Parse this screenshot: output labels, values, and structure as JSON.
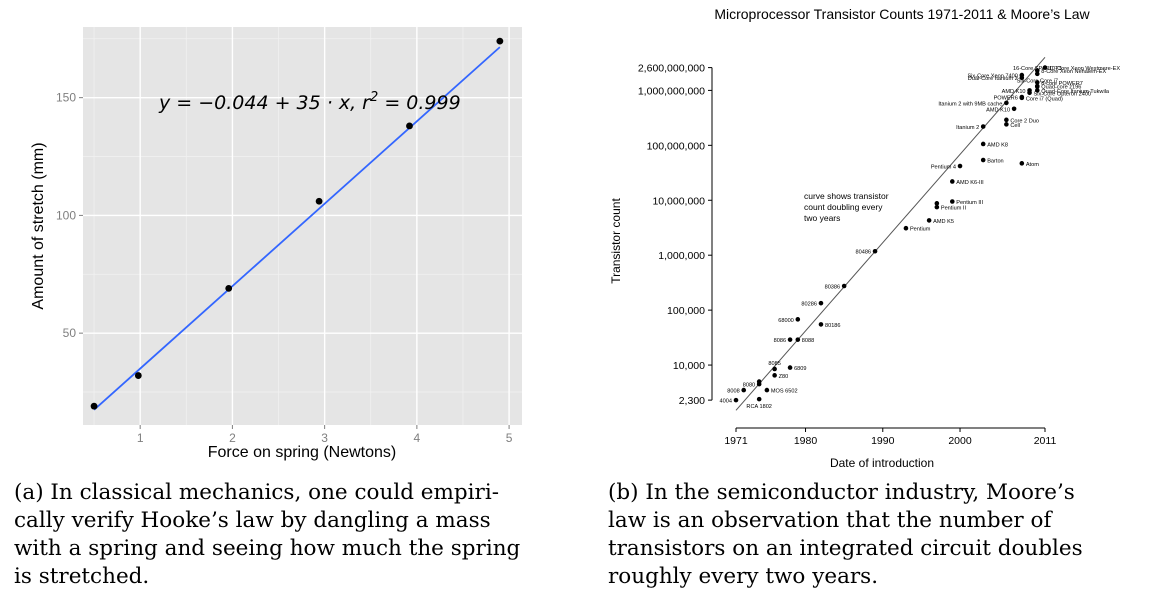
{
  "captions": {
    "a": [
      "(a) In classical mechanics, one could empiri-",
      "cally verify Hooke’s law by dangling a mass",
      "with a spring and seeing how much the spring",
      "is stretched."
    ],
    "b": [
      "(b) In the semiconductor industry, Moore’s",
      "law is an observation that the number of",
      "transistors on an integrated circuit doubles",
      "roughly every two years."
    ]
  },
  "chart_data": [
    {
      "type": "scatter",
      "title": "",
      "xlabel": "Force on spring (Newtons)",
      "ylabel": "Amount of stretch (mm)",
      "xlim": [
        0.38,
        5.14
      ],
      "ylim": [
        11,
        180
      ],
      "xticks": [
        1,
        2,
        3,
        4,
        5
      ],
      "yticks": [
        50,
        100,
        150
      ],
      "grid": true,
      "background": "#e5e5e5",
      "points": [
        {
          "x": 0.5,
          "y": 19
        },
        {
          "x": 0.98,
          "y": 32
        },
        {
          "x": 1.96,
          "y": 69
        },
        {
          "x": 2.94,
          "y": 106
        },
        {
          "x": 3.92,
          "y": 138
        },
        {
          "x": 4.9,
          "y": 174
        }
      ],
      "fit": {
        "intercept": -0.044,
        "slope": 35,
        "color": "#3366ff"
      },
      "annotation": {
        "pre": "y = −0.044 + 35 · x,  r",
        "sup": "2",
        "post": " = 0.999"
      }
    },
    {
      "type": "scatter",
      "title": "Microprocessor Transistor Counts 1971-2011 & Moore’s Law",
      "xlabel": "Date of introduction",
      "ylabel": "Transistor count",
      "yscale": "log",
      "xlim": [
        1971,
        2011
      ],
      "ylim": [
        1000,
        5000000000
      ],
      "xticks": [
        {
          "v": 1971,
          "label": "1971"
        },
        {
          "v": 1980,
          "label": "1980"
        },
        {
          "v": 1990,
          "label": "1990"
        },
        {
          "v": 2000,
          "label": "2000"
        },
        {
          "v": 2011,
          "label": "2011"
        }
      ],
      "yticks": [
        {
          "v": 2300,
          "label": "2,300"
        },
        {
          "v": 10000,
          "label": "10,000"
        },
        {
          "v": 100000,
          "label": "100,000"
        },
        {
          "v": 1000000,
          "label": "1,000,000"
        },
        {
          "v": 10000000,
          "label": "10,000,000"
        },
        {
          "v": 100000000,
          "label": "100,000,000"
        },
        {
          "v": 1000000000,
          "label": "1,000,000,000"
        },
        {
          "v": 2600000000,
          "label": "2,600,000,000"
        }
      ],
      "annotation": [
        "curve shows transistor",
        "count doubling every",
        "two years"
      ],
      "trend": {
        "start": [
          1971,
          1500
        ],
        "end": [
          2011,
          4000000000
        ]
      },
      "points": [
        {
          "x": 1971,
          "y": 2300,
          "label": "4004",
          "side": "left"
        },
        {
          "x": 1972,
          "y": 3500,
          "label": "8008",
          "side": "left"
        },
        {
          "x": 1974,
          "y": 4500,
          "label": "8080",
          "side": "left"
        },
        {
          "x": 1974,
          "y": 5000,
          "label": "",
          "side": "left"
        },
        {
          "x": 1974,
          "y": 2400,
          "label": "RCA 1802",
          "side": "below"
        },
        {
          "x": 1975,
          "y": 3500,
          "label": "MOS 6502",
          "side": "right"
        },
        {
          "x": 1976,
          "y": 8500,
          "label": "8085",
          "side": "above"
        },
        {
          "x": 1976,
          "y": 6500,
          "label": "Z80",
          "side": "right"
        },
        {
          "x": 1978,
          "y": 9000,
          "label": "6809",
          "side": "right"
        },
        {
          "x": 1978,
          "y": 29000,
          "label": "8086",
          "side": "left"
        },
        {
          "x": 1979,
          "y": 29000,
          "label": "8088",
          "side": "right"
        },
        {
          "x": 1979,
          "y": 68000,
          "label": "68000",
          "side": "left"
        },
        {
          "x": 1982,
          "y": 134000,
          "label": "80286",
          "side": "left"
        },
        {
          "x": 1982,
          "y": 55000,
          "label": "80186",
          "side": "right"
        },
        {
          "x": 1985,
          "y": 275000,
          "label": "80386",
          "side": "left"
        },
        {
          "x": 1989,
          "y": 1180000,
          "label": "80486",
          "side": "left"
        },
        {
          "x": 1993,
          "y": 3100000,
          "label": "Pentium",
          "side": "right"
        },
        {
          "x": 1996,
          "y": 4300000,
          "label": "AMD K5",
          "side": "right"
        },
        {
          "x": 1997,
          "y": 7500000,
          "label": "Pentium II",
          "side": "right"
        },
        {
          "x": 1997,
          "y": 8800000,
          "label": "",
          "side": "right"
        },
        {
          "x": 1999,
          "y": 9500000,
          "label": "Pentium III",
          "side": "right"
        },
        {
          "x": 1999,
          "y": 22000000,
          "label": "AMD K6-III",
          "side": "right"
        },
        {
          "x": 2000,
          "y": 42000000,
          "label": "Pentium 4",
          "side": "left"
        },
        {
          "x": 2003,
          "y": 54000000,
          "label": "Barton",
          "side": "right"
        },
        {
          "x": 2003,
          "y": 105900000,
          "label": "AMD K8",
          "side": "right"
        },
        {
          "x": 2003,
          "y": 220000000,
          "label": "Itanium 2",
          "side": "left"
        },
        {
          "x": 2006,
          "y": 291000000,
          "label": "Core 2 Duo",
          "side": "right"
        },
        {
          "x": 2006,
          "y": 241000000,
          "label": "Cell",
          "side": "right"
        },
        {
          "x": 2008,
          "y": 47000000,
          "label": "Atom",
          "side": "right"
        },
        {
          "x": 2007,
          "y": 463000000,
          "label": "AMD K10",
          "side": "left"
        },
        {
          "x": 2006,
          "y": 592000000,
          "label": "Itanium 2 with 9MB cache",
          "side": "left"
        },
        {
          "x": 2008,
          "y": 758000000,
          "label": "POWER6",
          "side": "left"
        },
        {
          "x": 2008,
          "y": 731000000,
          "label": "Core i7 (Quad)",
          "side": "right"
        },
        {
          "x": 2009,
          "y": 904000000,
          "label": "Six-Core Opteron 2400",
          "side": "right"
        },
        {
          "x": 2008,
          "y": 1700000000,
          "label": "Dual-Core Itanium 2",
          "side": "left"
        },
        {
          "x": 2009,
          "y": 1000000000,
          "label": "AMD K10",
          "side": "left"
        },
        {
          "x": 2010,
          "y": 1170000000,
          "label": "Six-Core Core i7",
          "side": "above"
        },
        {
          "x": 2008,
          "y": 1900000000,
          "label": "Six-Core Xeon 7400",
          "side": "left"
        },
        {
          "x": 2010,
          "y": 1200000000,
          "label": "Quad-core z196",
          "side": "right"
        },
        {
          "x": 2010,
          "y": 1400000000,
          "label": "8-core POWER7",
          "side": "right"
        },
        {
          "x": 2010,
          "y": 1000000000,
          "label": "Quad-Core Itanium Tukwila",
          "side": "right"
        },
        {
          "x": 2010,
          "y": 2300000000,
          "label": "8-Core Xeon Nehalem-EX",
          "side": "right"
        },
        {
          "x": 2011,
          "y": 2600000000,
          "label": "10-Core Xeon Westmere-EX",
          "side": "right"
        },
        {
          "x": 2010,
          "y": 2000000000,
          "label": "16-Core SPARC T3",
          "side": "above"
        }
      ]
    }
  ]
}
